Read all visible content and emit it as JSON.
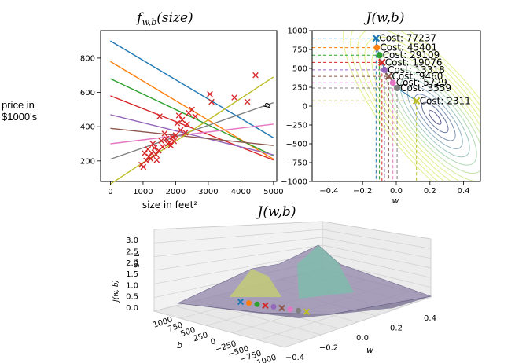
{
  "side_label_line1": "price in",
  "side_label_line2": "$1000's",
  "chart_data": [
    {
      "type": "scatter",
      "title": "f_{w,b}(size)",
      "title_main": "f",
      "title_sub": "w,b",
      "title_rest": "(size)",
      "xlabel": "size in feet²",
      "ylabel": "price in $1000's",
      "xlim": [
        -300,
        5100
      ],
      "ylim": [
        80,
        960
      ],
      "xticks": [
        0,
        1000,
        2000,
        3000,
        4000,
        5000
      ],
      "yticks": [
        200,
        400,
        600,
        800
      ],
      "marker_color": "#d62728",
      "points": [
        [
          950,
          178
        ],
        [
          1010,
          165
        ],
        [
          1050,
          245
        ],
        [
          1100,
          202
        ],
        [
          1150,
          268
        ],
        [
          1180,
          225
        ],
        [
          1230,
          212
        ],
        [
          1260,
          245
        ],
        [
          1300,
          300
        ],
        [
          1350,
          275
        ],
        [
          1400,
          238
        ],
        [
          1420,
          205
        ],
        [
          1480,
          260
        ],
        [
          1510,
          460
        ],
        [
          1560,
          318
        ],
        [
          1600,
          282
        ],
        [
          1660,
          360
        ],
        [
          1710,
          330
        ],
        [
          1760,
          300
        ],
        [
          1800,
          308
        ],
        [
          1850,
          290
        ],
        [
          1900,
          340
        ],
        [
          1950,
          315
        ],
        [
          2000,
          350
        ],
        [
          2050,
          420
        ],
        [
          2100,
          465
        ],
        [
          2150,
          380
        ],
        [
          2200,
          440
        ],
        [
          2300,
          365
        ],
        [
          2350,
          415
        ],
        [
          2400,
          480
        ],
        [
          2500,
          500
        ],
        [
          2600,
          460
        ],
        [
          3050,
          590
        ],
        [
          3100,
          545
        ],
        [
          3800,
          570
        ],
        [
          4200,
          545
        ],
        [
          4450,
          700
        ]
      ],
      "lines": [
        {
          "color": "#1f77b4",
          "y0": 900,
          "y5000": 335
        },
        {
          "color": "#ff7f0e",
          "y0": 780,
          "y5000": 210
        },
        {
          "color": "#2ca02c",
          "y0": 680,
          "y5000": 230
        },
        {
          "color": "#d62728",
          "y0": 580,
          "y5000": 205
        },
        {
          "color": "#9467bd",
          "y0": 470,
          "y5000": 235
        },
        {
          "color": "#8c564b",
          "y0": 390,
          "y5000": 290
        },
        {
          "color": "#e377c2",
          "y0": 300,
          "y5000": 415
        },
        {
          "color": "#7f7f7f",
          "y0": 210,
          "y5000": 540
        },
        {
          "color": "#bcbd22",
          "y0": 65,
          "y5000": 690
        }
      ]
    },
    {
      "type": "contour",
      "title": "J(w,b)",
      "xlabel": "w",
      "ylabel": "b",
      "xlim": [
        -0.5,
        0.5
      ],
      "ylim": [
        -1000,
        1000
      ],
      "xticks": [
        -0.4,
        -0.2,
        0.0,
        0.2,
        0.4
      ],
      "xtick_labels": [
        "−0.4",
        "−0.2",
        "0.0",
        "0.2",
        "0.4"
      ],
      "yticks": [
        1000,
        750,
        500,
        250,
        0,
        -250,
        -500,
        -750,
        -1000
      ],
      "ytick_labels": [
        "1000",
        "750",
        "500",
        "250",
        "0",
        "−250",
        "−500",
        "−750",
        "−1000"
      ],
      "path": [
        {
          "w": -0.12,
          "b": 900,
          "color": "#1f77b4",
          "marker": "x",
          "label": "Cost: 77237"
        },
        {
          "w": -0.115,
          "b": 775,
          "color": "#ff7f0e",
          "marker": "o",
          "label": "Cost: 45401"
        },
        {
          "w": -0.1,
          "b": 675,
          "color": "#2ca02c",
          "marker": "o",
          "label": "Cost: 29109"
        },
        {
          "w": -0.085,
          "b": 580,
          "color": "#d62728",
          "marker": "x",
          "label": "Cost: 19076"
        },
        {
          "w": -0.07,
          "b": 480,
          "color": "#9467bd",
          "marker": "o",
          "label": "Cost: 13318"
        },
        {
          "w": -0.045,
          "b": 395,
          "color": "#8c564b",
          "marker": "x",
          "label": "Cost: 9460"
        },
        {
          "w": -0.02,
          "b": 310,
          "color": "#e377c2",
          "marker": "o",
          "label": "Cost: 5729"
        },
        {
          "w": 0.005,
          "b": 240,
          "color": "#7f7f7f",
          "marker": "o",
          "label": "Cost: 3559"
        },
        {
          "w": 0.12,
          "b": 70,
          "color": "#bcbd22",
          "marker": "x",
          "label": "Cost: 2311"
        }
      ]
    },
    {
      "type": "surface",
      "title": "J(w,b)",
      "xlabel": "w",
      "ylabel": "b",
      "zlabel": "J(w, b)",
      "z_scale_label": "1e6",
      "zticks": [
        "0.0",
        "0.5",
        "1.0",
        "1.5",
        "2.0",
        "2.5",
        "3.0"
      ],
      "w_ticks": [
        "−0.4",
        "−0.2",
        "0.0",
        "0.2",
        "0.4"
      ],
      "b_ticks": [
        "1000",
        "750",
        "500",
        "250",
        "0",
        "−250",
        "−500",
        "−750",
        "−1000"
      ]
    }
  ]
}
